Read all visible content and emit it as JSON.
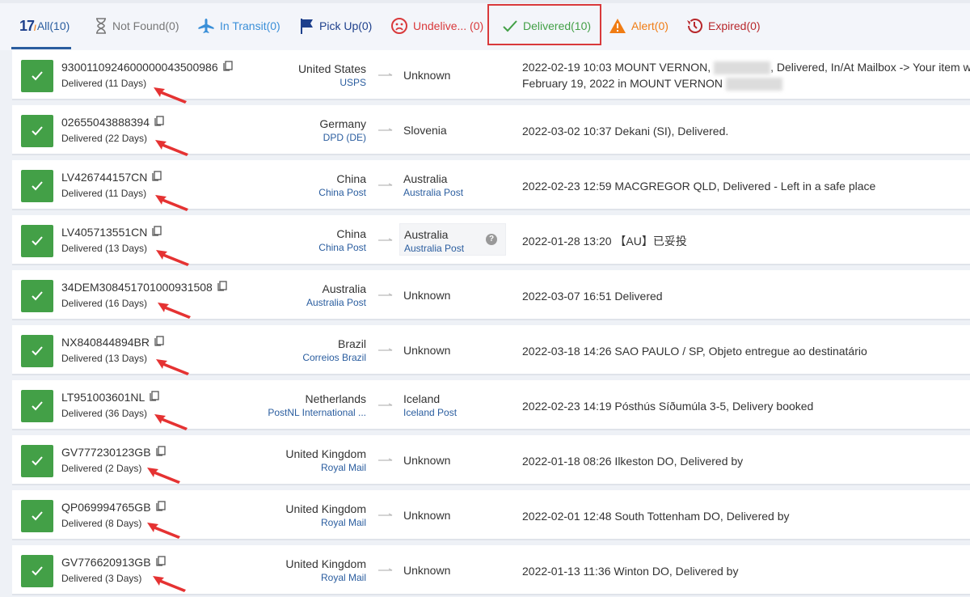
{
  "tabs": [
    {
      "label": "All(10)",
      "icon": "17track-logo",
      "color": "#2a5d9f",
      "active": true
    },
    {
      "label": "Not Found(0)",
      "icon": "hourglass-icon",
      "color": "#777777"
    },
    {
      "label": "In Transit(0)",
      "icon": "airplane-icon",
      "color": "#3a8fd8"
    },
    {
      "label": "Pick Up(0)",
      "icon": "flag-icon",
      "color": "#1d3f8c"
    },
    {
      "label": "Undelive... (0)",
      "icon": "sad-face-icon",
      "color": "#d9393b"
    },
    {
      "label": "Delivered(10)",
      "icon": "check-icon",
      "color": "#43a047"
    },
    {
      "label": "Alert(0)",
      "icon": "warning-icon",
      "color": "#f07c14"
    },
    {
      "label": "Expired(0)",
      "icon": "history-icon",
      "color": "#b8282c"
    }
  ],
  "logo": "17",
  "rows": [
    {
      "number": "9300110924600000043500986",
      "status": "Delivered (11 Days)",
      "origin": "United States",
      "origin_carrier": "USPS",
      "dest": "Unknown",
      "dest_carrier": "",
      "event": "2022-02-19 10:03  MOUNT VERNON,",
      "event_rest": ", Delivered, In/At Mailbox -> Your item w",
      "event_line2": "February 19, 2022 in MOUNT VERNON"
    },
    {
      "number": "02655043888394",
      "status": "Delivered (22 Days)",
      "origin": "Germany",
      "origin_carrier": "DPD (DE)",
      "dest": "Slovenia",
      "dest_carrier": "",
      "event": "2022-03-02 10:37  Dekani (SI), Delivered."
    },
    {
      "number": "LV426744157CN",
      "status": "Delivered (11 Days)",
      "origin": "China",
      "origin_carrier": "China Post",
      "dest": "Australia",
      "dest_carrier": "Australia Post",
      "event": "2022-02-23 12:59  MACGREGOR QLD, Delivered - Left in a safe place"
    },
    {
      "number": "LV405713551CN",
      "status": "Delivered (13 Days)",
      "origin": "China",
      "origin_carrier": "China Post",
      "dest": "Australia",
      "dest_carrier": "Australia Post",
      "hover": true,
      "event": "2022-01-28 13:20  【AU】已妥投"
    },
    {
      "number": "34DEM308451701000931508",
      "status": "Delivered (16 Days)",
      "origin": "Australia",
      "origin_carrier": "Australia Post",
      "dest": "Unknown",
      "dest_carrier": "",
      "event": "2022-03-07 16:51  Delivered"
    },
    {
      "number": "NX840844894BR",
      "status": "Delivered (13 Days)",
      "origin": "Brazil",
      "origin_carrier": "Correios Brazil",
      "dest": "Unknown",
      "dest_carrier": "",
      "event": "2022-03-18 14:26  SAO PAULO / SP, Objeto entregue ao destinatário"
    },
    {
      "number": "LT951003601NL",
      "status": "Delivered (36 Days)",
      "origin": "Netherlands",
      "origin_carrier": "PostNL International ...",
      "dest": "Iceland",
      "dest_carrier": "Iceland Post",
      "event": "2022-02-23 14:19  Pósthús Síðumúla 3-5, Delivery booked"
    },
    {
      "number": "GV777230123GB",
      "status": "Delivered (2 Days)",
      "origin": "United Kingdom",
      "origin_carrier": "Royal Mail",
      "dest": "Unknown",
      "dest_carrier": "",
      "event": "2022-01-18 08:26  Ilkeston DO, Delivered by"
    },
    {
      "number": "QP069994765GB",
      "status": "Delivered (8 Days)",
      "origin": "United Kingdom",
      "origin_carrier": "Royal Mail",
      "dest": "Unknown",
      "dest_carrier": "",
      "event": "2022-02-01 12:48  South Tottenham DO, Delivered by"
    },
    {
      "number": "GV776620913GB",
      "status": "Delivered (3 Days)",
      "origin": "United Kingdom",
      "origin_carrier": "Royal Mail",
      "dest": "Unknown",
      "dest_carrier": "",
      "event": "2022-01-13 11:36  Winton DO, Delivered by"
    }
  ],
  "colors": {
    "delivered": "#43a047",
    "carrier": "#2a5d9f",
    "highlight": "#d9393b"
  }
}
